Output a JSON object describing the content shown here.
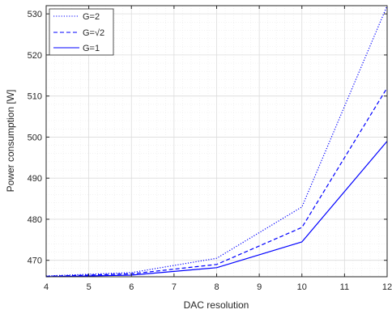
{
  "chart_data": {
    "type": "line",
    "title": "",
    "xlabel": "DAC resolution",
    "ylabel": "Power consumption [W]",
    "xlim": [
      4,
      12
    ],
    "ylim": [
      466,
      532
    ],
    "x_ticks": [
      "4",
      "5",
      "6",
      "7",
      "8",
      "9",
      "10",
      "11",
      "12"
    ],
    "y_ticks": [
      "470",
      "480",
      "490",
      "500",
      "510",
      "520",
      "530"
    ],
    "grid": true,
    "legend_position": "top-left",
    "x": [
      4,
      6,
      8,
      10,
      12
    ],
    "series": [
      {
        "name": "G=2",
        "line_style": "dotted",
        "color": "#0000ff",
        "values": [
          466.2,
          467.0,
          470.5,
          483.0,
          532.0
        ]
      },
      {
        "name": "G=√2",
        "line_style": "dashed",
        "color": "#0000ff",
        "values": [
          466.1,
          466.7,
          469.0,
          478.0,
          512.0
        ]
      },
      {
        "name": "G=1",
        "line_style": "solid",
        "color": "#0000ff",
        "values": [
          466.0,
          466.4,
          468.2,
          474.5,
          499.0
        ]
      }
    ]
  }
}
